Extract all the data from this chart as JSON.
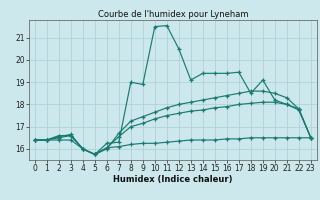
{
  "title": "Courbe de l'humidex pour Lyneham",
  "xlabel": "Humidex (Indice chaleur)",
  "bg_color": "#cce8ec",
  "grid_color": "#aacdd4",
  "line_color": "#1a7a70",
  "xlim": [
    -0.5,
    23.5
  ],
  "ylim": [
    15.5,
    21.8
  ],
  "xticks": [
    0,
    1,
    2,
    3,
    4,
    5,
    6,
    7,
    8,
    9,
    10,
    11,
    12,
    13,
    14,
    15,
    16,
    17,
    18,
    19,
    20,
    21,
    22,
    23
  ],
  "yticks": [
    16,
    17,
    18,
    19,
    20,
    21
  ],
  "line1_x": [
    0,
    1,
    2,
    3,
    4,
    5,
    6,
    7,
    8,
    9,
    10,
    11,
    12,
    13,
    14,
    15,
    16,
    17,
    18,
    19,
    20,
    21,
    22,
    23
  ],
  "line1_y": [
    16.4,
    16.4,
    16.6,
    16.6,
    16.0,
    15.75,
    16.25,
    16.3,
    19.0,
    18.9,
    21.5,
    21.55,
    20.5,
    19.1,
    19.4,
    19.4,
    19.4,
    19.45,
    18.5,
    19.1,
    18.2,
    18.0,
    17.8,
    16.5
  ],
  "line2_x": [
    0,
    1,
    2,
    3,
    4,
    5,
    6,
    7,
    8,
    9,
    10,
    11,
    12,
    13,
    14,
    15,
    16,
    17,
    18,
    19,
    20,
    21,
    22,
    23
  ],
  "line2_y": [
    16.4,
    16.4,
    16.55,
    16.65,
    16.0,
    15.75,
    16.0,
    16.7,
    17.25,
    17.45,
    17.65,
    17.85,
    18.0,
    18.1,
    18.2,
    18.3,
    18.4,
    18.5,
    18.6,
    18.6,
    18.5,
    18.3,
    17.8,
    16.5
  ],
  "line3_x": [
    0,
    1,
    2,
    3,
    4,
    5,
    6,
    7,
    8,
    9,
    10,
    11,
    12,
    13,
    14,
    15,
    16,
    17,
    18,
    19,
    20,
    21,
    22,
    23
  ],
  "line3_y": [
    16.4,
    16.4,
    16.5,
    16.6,
    16.0,
    15.75,
    16.05,
    16.55,
    17.0,
    17.15,
    17.35,
    17.5,
    17.6,
    17.7,
    17.75,
    17.85,
    17.9,
    18.0,
    18.05,
    18.1,
    18.1,
    18.0,
    17.75,
    16.5
  ],
  "line4_x": [
    0,
    1,
    2,
    3,
    4,
    5,
    6,
    7,
    8,
    9,
    10,
    11,
    12,
    13,
    14,
    15,
    16,
    17,
    18,
    19,
    20,
    21,
    22,
    23
  ],
  "line4_y": [
    16.4,
    16.4,
    16.4,
    16.4,
    16.0,
    15.75,
    16.05,
    16.1,
    16.2,
    16.25,
    16.25,
    16.3,
    16.35,
    16.4,
    16.4,
    16.4,
    16.45,
    16.45,
    16.5,
    16.5,
    16.5,
    16.5,
    16.5,
    16.5
  ]
}
